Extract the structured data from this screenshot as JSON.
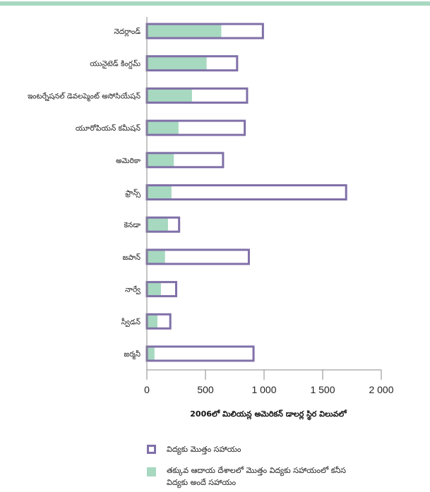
{
  "chart_data": {
    "type": "bar",
    "orientation": "horizontal",
    "categories": [
      "నెదర్లాండ్",
      "యునైటెడ్ కింగ్డమ్",
      "ఇంటర్నేషనల్ డెవలప్మెంట్ అసోసియేషన్",
      "యూరోపియన్ కమీషన్",
      "అమెరికా",
      "ఫ్రాన్స్",
      "కెనడా",
      "జపాన్",
      "నార్వే",
      "స్వీడన్",
      "జర్మనీ"
    ],
    "series": [
      {
        "name": "విద్యకు మొత్తం సహాయం",
        "values": [
          990,
          770,
          855,
          835,
          650,
          1700,
          275,
          870,
          250,
          200,
          910
        ]
      },
      {
        "name": "తక్కువ ఆదాయ దేశాలలో మొత్తం విద్యకు సహాయంలో కనీస విద్యకు అందే సహాయం",
        "values": [
          635,
          510,
          385,
          270,
          230,
          210,
          180,
          155,
          120,
          90,
          65
        ]
      }
    ],
    "xticks": [
      "0",
      "500",
      "1 000",
      "1 500",
      "2 000"
    ],
    "xlim": [
      0,
      2000
    ],
    "xlabel": "2006లో మిలియన్ల అమెరికన్ డాలర్ల స్థిర విలువలో",
    "legend_position": "bottom",
    "grid": false
  },
  "colors": {
    "total_outline": "#8070a8",
    "basic_fill": "#a7d8c0",
    "axis": "#888888"
  }
}
